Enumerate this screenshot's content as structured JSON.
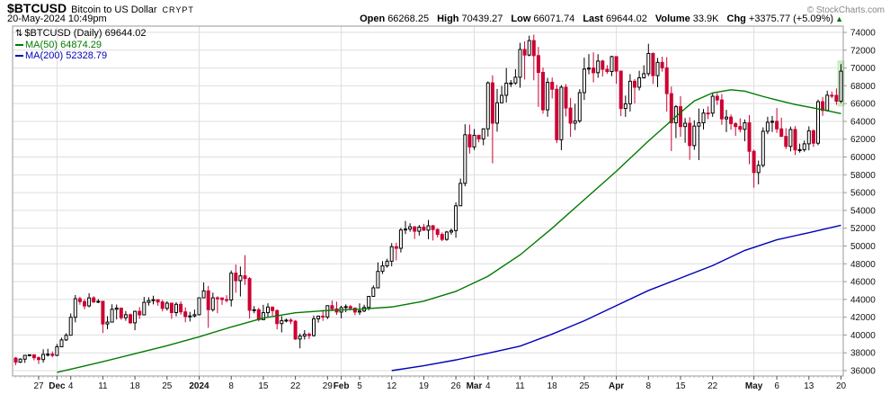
{
  "header": {
    "symbol": "$BTCUSD",
    "name": "Bitcoin to US Dollar",
    "exchange": "CRYPT",
    "copyright": "© StockCharts.com",
    "datetime": "20-May-2024 10:49pm",
    "quote": {
      "open_label": "Open",
      "open": "66268.25",
      "high_label": "High",
      "high": "70439.27",
      "low_label": "Low",
      "low": "66071.74",
      "last_label": "Last",
      "last": "69644.02",
      "volume_label": "Volume",
      "volume": "33.9K",
      "chg_label": "Chg",
      "chg": "+3375.77 (+5.09%)",
      "chg_dir": "▲"
    }
  },
  "legend": {
    "series_icon": "⇅",
    "series": "$BTCUSD (Daily) 69644.02",
    "ma50": "MA(50) 64874.29",
    "ma200": "MA(200) 52328.79"
  },
  "colors": {
    "up": "#000000",
    "down": "#cc0033",
    "ma50": "#007a00",
    "ma200": "#0000bb",
    "grid": "#dedede",
    "border": "#999999",
    "highlight": "#c6eec0",
    "axis_text": "#111111",
    "chg_arrow": "#007000"
  },
  "chart_data": {
    "type": "candlestick",
    "symbol": "$BTCUSD",
    "interval": "Daily",
    "start_date": "2023-11-22",
    "end_date": "2024-05-20",
    "title": "$BTCUSD (Daily) 69644.02",
    "y_axis": {
      "min": 36000,
      "max": 74000,
      "step": 2000
    },
    "first_open": 37410,
    "close": [
      36950,
      37290,
      37720,
      37780,
      37450,
      37240,
      37820,
      37850,
      37710,
      38680,
      39450,
      39970,
      41990,
      44080,
      43750,
      43270,
      44170,
      43720,
      43790,
      41240,
      41450,
      42890,
      43020,
      41940,
      42280,
      41370,
      42660,
      42260,
      43670,
      43860,
      43970,
      43710,
      42990,
      43580,
      42520,
      43450,
      42600,
      42070,
      42140,
      42280,
      44180,
      44960,
      42850,
      44180,
      44160,
      43990,
      43940,
      46950,
      46110,
      46650,
      46340,
      42780,
      42840,
      41720,
      42510,
      43140,
      42740,
      41280,
      41620,
      41670,
      41550,
      39550,
      39880,
      40080,
      39940,
      41820,
      42120,
      42030,
      43300,
      42940,
      42580,
      43080,
      43190,
      43010,
      42580,
      42700,
      43100,
      44340,
      45300,
      47150,
      47770,
      48290,
      49920,
      49740,
      51800,
      51900,
      52160,
      51660,
      52120,
      51780,
      52270,
      51850,
      51300,
      50740,
      51570,
      51730,
      54520,
      57040,
      62500,
      61130,
      62440,
      62030,
      63160,
      68330,
      63800,
      66090,
      66930,
      68300,
      68310,
      68960,
      72080,
      71450,
      73080,
      71390,
      69500,
      65300,
      68390,
      67610,
      61940,
      67840,
      65500,
      63800,
      64060,
      67230,
      69880,
      69990,
      69470,
      70780,
      69850,
      69600,
      71280,
      69650,
      65450,
      65980,
      68510,
      67840,
      68900,
      69360,
      71630,
      69140,
      70630,
      70010,
      67120,
      63840,
      65650,
      63420,
      63790,
      61280,
      63470,
      63840,
      64940,
      64930,
      66820,
      66410,
      64280,
      64480,
      63750,
      63420,
      63110,
      63840,
      60640,
      58250,
      59060,
      62890,
      63900,
      64010,
      63160,
      62310,
      61190,
      63090,
      60790,
      60820,
      61480,
      62940,
      61550,
      66210,
      65230,
      66940,
      66920,
      66268,
      69644
    ],
    "high": [
      37510,
      37390,
      37750,
      37830,
      37810,
      37590,
      38390,
      38450,
      38150,
      38990,
      39700,
      40200,
      42420,
      44490,
      44300,
      44050,
      44700,
      44360,
      44050,
      43810,
      42110,
      43450,
      43420,
      43080,
      42700,
      42420,
      42740,
      43130,
      44280,
      44240,
      44410,
      44000,
      43940,
      43800,
      43600,
      43680,
      43790,
      43110,
      42600,
      42860,
      44190,
      45900,
      45520,
      44760,
      44350,
      44210,
      44470,
      47250,
      47920,
      47690,
      48970,
      46510,
      43250,
      43060,
      43390,
      43570,
      43190,
      42900,
      42130,
      41850,
      41880,
      41680,
      40170,
      40550,
      40290,
      42190,
      42190,
      42830,
      43320,
      43880,
      43740,
      43290,
      43440,
      43380,
      43110,
      43550,
      43400,
      44380,
      45570,
      48170,
      48300,
      48570,
      50330,
      50370,
      52030,
      52820,
      52550,
      52190,
      52360,
      52490,
      52930,
      52370,
      52000,
      51530,
      51700,
      51960,
      54910,
      57580,
      63680,
      63650,
      63150,
      62430,
      63230,
      68490,
      69170,
      67640,
      67980,
      69990,
      68650,
      69870,
      72830,
      73000,
      73630,
      73750,
      72360,
      70050,
      68900,
      68930,
      68100,
      68080,
      68190,
      66640,
      65980,
      67620,
      71160,
      71560,
      71760,
      71550,
      70910,
      70320,
      71370,
      71290,
      69680,
      66900,
      69310,
      68740,
      69690,
      70310,
      72720,
      71740,
      71130,
      71270,
      71220,
      67910,
      65840,
      66840,
      64370,
      64470,
      64120,
      65450,
      65400,
      65690,
      67220,
      67170,
      67070,
      65290,
      64780,
      63900,
      64350,
      64220,
      64700,
      60830,
      59600,
      63330,
      64520,
      64620,
      65500,
      64420,
      63240,
      63420,
      63460,
      61500,
      61850,
      63450,
      63110,
      66440,
      66750,
      67450,
      67350,
      67700,
      70439
    ],
    "low": [
      36620,
      36850,
      36870,
      37590,
      37150,
      36750,
      36900,
      37570,
      37500,
      37620,
      38650,
      39330,
      39970,
      41420,
      43400,
      42880,
      43110,
      43600,
      43580,
      40220,
      40660,
      41410,
      41750,
      41710,
      41600,
      41260,
      40540,
      41810,
      42230,
      43300,
      43440,
      43290,
      42650,
      42750,
      41810,
      42100,
      42280,
      41430,
      41520,
      41970,
      42200,
      44150,
      40810,
      42630,
      42450,
      43390,
      43660,
      43200,
      44750,
      44330,
      45630,
      41850,
      42440,
      41530,
      41690,
      42060,
      42180,
      40640,
      40290,
      41430,
      41220,
      39450,
      38510,
      39490,
      39550,
      39810,
      41390,
      41590,
      41790,
      42680,
      42270,
      41880,
      42560,
      42880,
      42220,
      42250,
      42570,
      42780,
      44340,
      45250,
      46860,
      47570,
      47710,
      48380,
      49270,
      51340,
      51610,
      50790,
      51170,
      51680,
      50760,
      50620,
      50940,
      50530,
      50590,
      51290,
      50930,
      54480,
      56710,
      60380,
      60790,
      61660,
      61320,
      62300,
      59290,
      62850,
      66080,
      66120,
      67860,
      68120,
      67780,
      68710,
      71310,
      68620,
      65630,
      64870,
      64520,
      66570,
      61550,
      60770,
      64550,
      62260,
      63020,
      63830,
      66400,
      69300,
      68390,
      68900,
      69050,
      69340,
      69090,
      68220,
      64590,
      64510,
      65110,
      66030,
      67480,
      68810,
      69090,
      68210,
      67850,
      69590,
      65110,
      60660,
      62130,
      62270,
      61600,
      59680,
      60800,
      59650,
      63100,
      64250,
      64510,
      65860,
      63610,
      62790,
      63060,
      62380,
      62770,
      61770,
      59190,
      56550,
      56920,
      58830,
      62570,
      62820,
      62700,
      62260,
      60890,
      60630,
      60220,
      60490,
      60590,
      60750,
      61130,
      61320,
      64620,
      65110,
      66610,
      65860,
      66071
    ],
    "x_ticks": [
      {
        "i": 5,
        "label": "27"
      },
      {
        "i": 9,
        "label": "Dec",
        "bold": true
      },
      {
        "i": 12,
        "label": "4"
      },
      {
        "i": 19,
        "label": "11"
      },
      {
        "i": 26,
        "label": "18"
      },
      {
        "i": 33,
        "label": "25"
      },
      {
        "i": 40,
        "label": "2024",
        "bold": true
      },
      {
        "i": 47,
        "label": "8"
      },
      {
        "i": 54,
        "label": "15"
      },
      {
        "i": 61,
        "label": "22"
      },
      {
        "i": 68,
        "label": "29"
      },
      {
        "i": 71,
        "label": "Feb",
        "bold": true
      },
      {
        "i": 75,
        "label": "5"
      },
      {
        "i": 82,
        "label": "12"
      },
      {
        "i": 89,
        "label": "19"
      },
      {
        "i": 96,
        "label": "26"
      },
      {
        "i": 100,
        "label": "Mar",
        "bold": true
      },
      {
        "i": 103,
        "label": "4"
      },
      {
        "i": 110,
        "label": "11"
      },
      {
        "i": 117,
        "label": "18"
      },
      {
        "i": 124,
        "label": "25"
      },
      {
        "i": 131,
        "label": "Apr",
        "bold": true
      },
      {
        "i": 138,
        "label": "8"
      },
      {
        "i": 145,
        "label": "15"
      },
      {
        "i": 152,
        "label": "22"
      },
      {
        "i": 161,
        "label": "May",
        "bold": true
      },
      {
        "i": 166,
        "label": "6"
      },
      {
        "i": 173,
        "label": "13"
      },
      {
        "i": 180,
        "label": "20"
      }
    ],
    "month_grid_indices": [
      9,
      40,
      71,
      100,
      131,
      161
    ],
    "ma50_points": [
      [
        9,
        35800
      ],
      [
        14,
        36400
      ],
      [
        19,
        37000
      ],
      [
        26,
        37900
      ],
      [
        33,
        38800
      ],
      [
        40,
        39800
      ],
      [
        47,
        40900
      ],
      [
        54,
        41900
      ],
      [
        61,
        42500
      ],
      [
        68,
        42750
      ],
      [
        75,
        42900
      ],
      [
        82,
        43150
      ],
      [
        89,
        43800
      ],
      [
        96,
        44900
      ],
      [
        103,
        46600
      ],
      [
        110,
        49000
      ],
      [
        117,
        52000
      ],
      [
        124,
        55200
      ],
      [
        131,
        58400
      ],
      [
        138,
        61800
      ],
      [
        145,
        65000
      ],
      [
        148,
        66300
      ],
      [
        152,
        67200
      ],
      [
        156,
        67550
      ],
      [
        159,
        67400
      ],
      [
        163,
        66800
      ],
      [
        166,
        66400
      ],
      [
        170,
        65900
      ],
      [
        173,
        65600
      ],
      [
        177,
        65200
      ],
      [
        180,
        64874
      ]
    ],
    "ma200_points": [
      [
        82,
        36000
      ],
      [
        89,
        36550
      ],
      [
        96,
        37200
      ],
      [
        103,
        37950
      ],
      [
        110,
        38750
      ],
      [
        117,
        40100
      ],
      [
        124,
        41600
      ],
      [
        131,
        43300
      ],
      [
        138,
        45000
      ],
      [
        145,
        46400
      ],
      [
        152,
        47800
      ],
      [
        159,
        49500
      ],
      [
        166,
        50700
      ],
      [
        173,
        51500
      ],
      [
        180,
        52329
      ]
    ]
  }
}
